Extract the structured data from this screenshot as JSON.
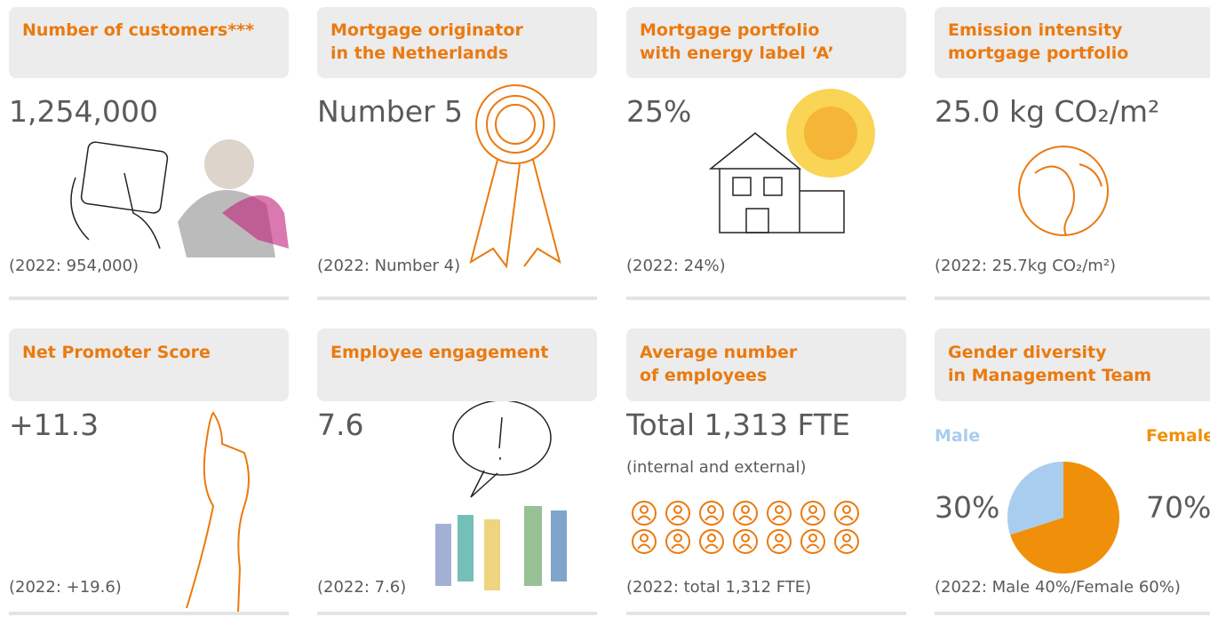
{
  "cards": [
    {
      "title": [
        "Number of customers***"
      ],
      "value": "1,254,000",
      "previous": "(2022: 954,000)"
    },
    {
      "title": [
        "Mortgage originator",
        "in the Netherlands"
      ],
      "value": "Number 5",
      "previous": "(2022: Number 4)"
    },
    {
      "title": [
        "Mortgage portfolio",
        "with energy label ‘A’"
      ],
      "value": "25%",
      "previous": "(2022: 24%)"
    },
    {
      "title": [
        "Emission intensity",
        "mortgage portfolio"
      ],
      "value": "25.0 kg CO₂/m²",
      "previous": "(2022: 25.7kg CO₂/m²)"
    },
    {
      "title": [
        "Net Promoter Score"
      ],
      "value": "+11.3",
      "previous": "(2022: +19.6)"
    },
    {
      "title": [
        "Employee engagement"
      ],
      "value": "7.6",
      "previous": "(2022: 7.6)"
    },
    {
      "title": [
        "Average number",
        "of employees"
      ],
      "value": "Total 1,313 FTE",
      "note": "(internal and external)",
      "previous": "(2022: total 1,312 FTE)"
    },
    {
      "title": [
        "Gender diversity",
        "in Management Team"
      ],
      "previous": "(2022: Male 40%/Female 60%)",
      "chart_data": {
        "type": "pie",
        "categories": [
          "Male",
          "Female"
        ],
        "values": [
          30,
          70
        ],
        "value_labels": [
          "30%",
          "70%"
        ],
        "colors": [
          "#a9cdee",
          "#f0900a"
        ]
      }
    }
  ]
}
